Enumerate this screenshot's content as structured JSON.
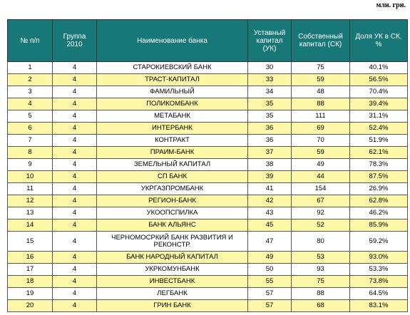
{
  "unit_note": "млн. грн.",
  "table": {
    "header": [
      "№ п/п",
      "Группа 2010",
      "Наименование банка",
      "Уставный капитал (УК)",
      "Собственный капитал (СК)",
      "Доля УК в СК, %"
    ],
    "rows": [
      [
        1,
        4,
        "СТАРОКИЕВСКИЙ БАНК",
        30,
        75,
        "40.1%"
      ],
      [
        2,
        4,
        "ТРАСТ-КАПИТАЛ",
        33,
        59,
        "56.5%"
      ],
      [
        3,
        4,
        "ФАМИЛЬНЫЙ",
        34,
        48,
        "70.4%"
      ],
      [
        4,
        4,
        "ПОЛИКОМБАНК",
        35,
        88,
        "39.4%"
      ],
      [
        5,
        4,
        "МЕТАБАНК",
        35,
        111,
        "31.1%"
      ],
      [
        6,
        4,
        "ИНТЕРБАНК",
        36,
        69,
        "52.4%"
      ],
      [
        7,
        4,
        "КОНТРАКТ",
        36,
        70,
        "51.9%"
      ],
      [
        8,
        4,
        "ПРАИМ-БАНК",
        37,
        59,
        "62.1%"
      ],
      [
        9,
        4,
        "ЗЕМЕЛЬНЫЙ КАПИТАЛ",
        38,
        49,
        "78.3%"
      ],
      [
        10,
        4,
        "СП БАНК",
        39,
        44,
        "87.5%"
      ],
      [
        11,
        4,
        "УКРГАЗПРОМБАНК",
        41,
        154,
        "26.9%"
      ],
      [
        12,
        4,
        "РЕГИОН-БАНК",
        42,
        67,
        "62.8%"
      ],
      [
        13,
        4,
        "УКООПСПИЛКА",
        43,
        92,
        "46.2%"
      ],
      [
        14,
        4,
        "БАНК АЛЬЯНС",
        45,
        52,
        "85.9%"
      ],
      [
        15,
        4,
        "ЧЕРНОМОСРКИЙ БАНК РАЗВИТИЯ И РЕКОНСТР.",
        47,
        80,
        "59.2%"
      ],
      [
        16,
        4,
        "БАНК НАРОДНЫЙ КАПИТАЛ",
        49,
        53,
        "93.0%"
      ],
      [
        17,
        4,
        "УКРКОМУНБАНК",
        50,
        93,
        "53.3%"
      ],
      [
        18,
        4,
        "ИНВЕСТБАНК",
        55,
        75,
        "73.8%"
      ],
      [
        19,
        4,
        "ЛЕГБАНК",
        57,
        88,
        "64.5%"
      ],
      [
        20,
        4,
        "ГРИН БАНК",
        57,
        68,
        "83.1%"
      ]
    ]
  }
}
